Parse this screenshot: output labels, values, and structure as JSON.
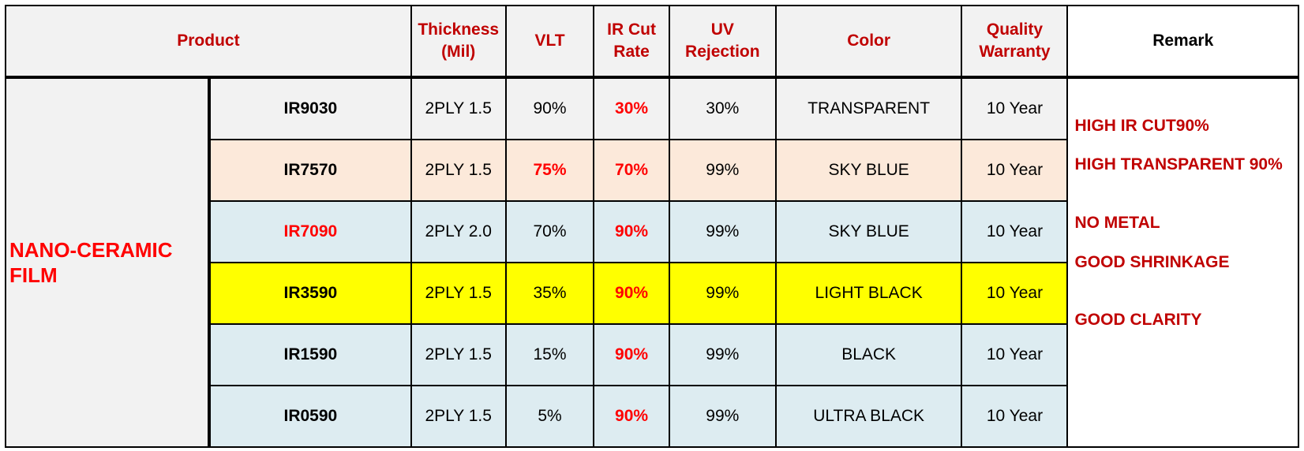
{
  "headers": {
    "product": "Product",
    "thickness_line1": "Thickness",
    "thickness_line2": "(Mil)",
    "vlt": "VLT",
    "ir_line1": "IR Cut",
    "ir_line2": "Rate",
    "uv_line1": "UV",
    "uv_line2": "Rejection",
    "color": "Color",
    "warranty_line1": "Quality",
    "warranty_line2": "Warranty",
    "remark": "Remark"
  },
  "category": {
    "line1": "NANO-CERAMIC",
    "line2": "FILM"
  },
  "row_colors": {
    "gray": "#f2f2f2",
    "peach": "#fce9da",
    "lightblue": "#ddecf1",
    "yellow": "#ffff00"
  },
  "rows": [
    {
      "model": "IR9030",
      "thickness": "2PLY 1.5",
      "vlt": "90%",
      "ir": "30%",
      "uv": "30%",
      "color": "TRANSPARENT",
      "warranty": "10 Year"
    },
    {
      "model": "IR7570",
      "thickness": "2PLY 1.5",
      "vlt": "75%",
      "ir": "70%",
      "uv": "99%",
      "color": "SKY BLUE",
      "warranty": "10 Year"
    },
    {
      "model": "IR7090",
      "thickness": "2PLY 2.0",
      "vlt": "70%",
      "ir": "90%",
      "uv": "99%",
      "color": "SKY BLUE",
      "warranty": "10 Year"
    },
    {
      "model": "IR3590",
      "thickness": "2PLY 1.5",
      "vlt": "35%",
      "ir": "90%",
      "uv": "99%",
      "color": "LIGHT BLACK",
      "warranty": "10 Year"
    },
    {
      "model": "IR1590",
      "thickness": "2PLY 1.5",
      "vlt": "15%",
      "ir": "90%",
      "uv": "99%",
      "color": "BLACK",
      "warranty": "10 Year"
    },
    {
      "model": "IR0590",
      "thickness": "2PLY 1.5",
      "vlt": "5%",
      "ir": "90%",
      "uv": "99%",
      "color": "ULTRA BLACK",
      "warranty": "10 Year"
    }
  ],
  "remarks": [
    "HIGH IR CUT90%",
    "HIGH TRANSPARENT 90%",
    "NO METAL",
    "GOOD SHRINKAGE",
    "GOOD CLARITY"
  ]
}
